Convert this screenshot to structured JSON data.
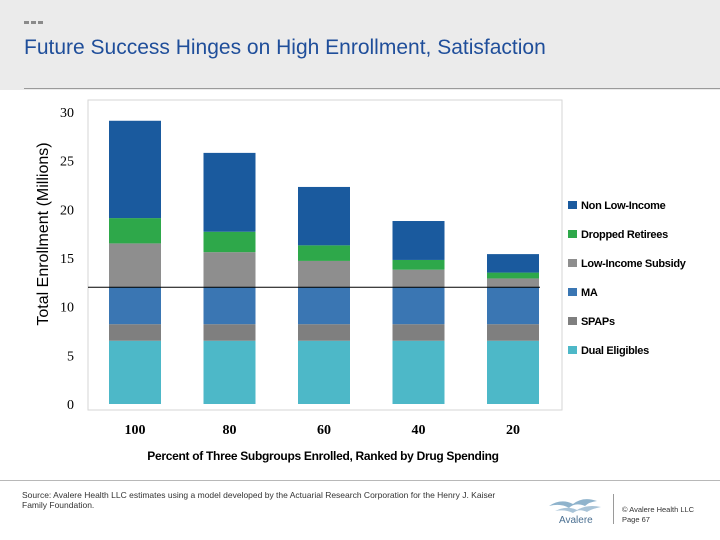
{
  "header": {
    "title": "Future Success Hinges on High Enrollment, Satisfaction"
  },
  "chart_data": {
    "type": "bar",
    "stacked": true,
    "categories": [
      "100",
      "80",
      "60",
      "40",
      "20"
    ],
    "xlabel": "Percent of Three Subgroups Enrolled, Ranked by Drug Spending",
    "ylabel": "Total Enrollment (Millions)",
    "ylim": [
      0,
      30
    ],
    "yticks": [
      "0",
      "5",
      "10",
      "15",
      "20",
      "25",
      "30"
    ],
    "legend_position": "right",
    "reference_line": 12,
    "series": [
      {
        "name": "Dual Eligibles",
        "color": "#4db8c8",
        "values": [
          6.5,
          6.5,
          6.5,
          6.5,
          6.5
        ]
      },
      {
        "name": "SPAPs",
        "color": "#7f7f7f",
        "values": [
          1.7,
          1.7,
          1.7,
          1.7,
          1.7
        ]
      },
      {
        "name": "MA",
        "color": "#3a76b3",
        "values": [
          3.8,
          3.8,
          3.8,
          3.8,
          3.8
        ]
      },
      {
        "name": "Low-Income Subsidy",
        "color": "#8e8e8e",
        "values": [
          4.5,
          3.6,
          2.7,
          1.8,
          0.9
        ]
      },
      {
        "name": "Dropped Retirees",
        "color": "#2ea84a",
        "values": [
          2.6,
          2.1,
          1.6,
          1.0,
          0.6
        ]
      },
      {
        "name": "Non Low-Income",
        "color": "#1a5a9e",
        "values": [
          10.0,
          8.1,
          6.0,
          4.0,
          1.9
        ]
      }
    ]
  },
  "footer": {
    "source": "Source: Avalere Health LLC estimates using a model developed by the Actuarial Research Corporation for the Henry J. Kaiser Family Foundation.",
    "logo_text": "Avalere",
    "copyright": "© Avalere Health LLC",
    "page": "Page 67"
  }
}
